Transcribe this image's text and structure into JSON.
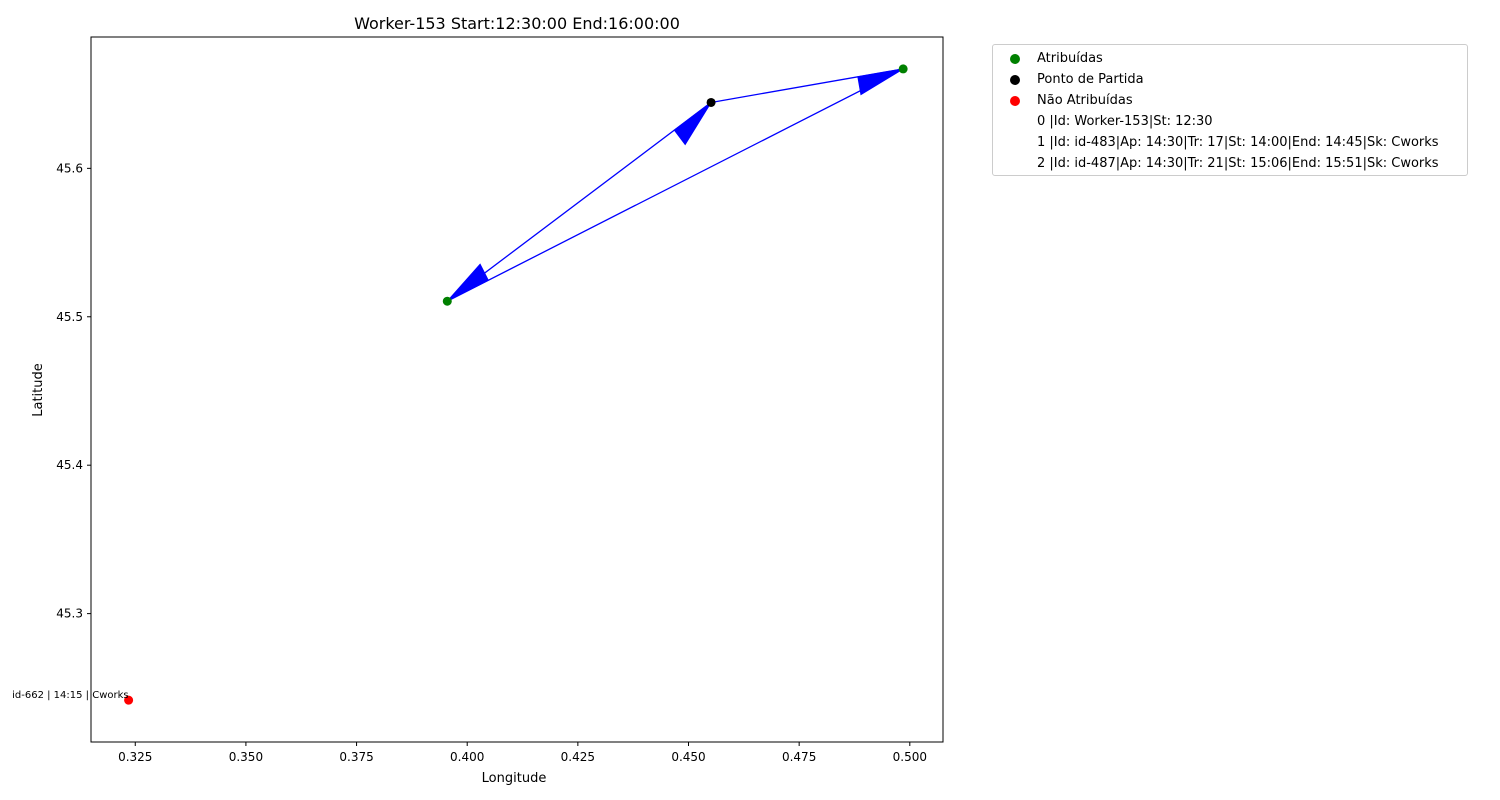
{
  "chart_data": {
    "type": "scatter",
    "title": "Worker-153 Start:12:30:00 End:16:00:00",
    "xlabel": "Longitude",
    "ylabel": "Latitude",
    "xlim": [
      0.315,
      0.5075
    ],
    "ylim": [
      45.2135,
      45.6885
    ],
    "xticks": [
      0.325,
      0.35,
      0.375,
      0.4,
      0.425,
      0.45,
      0.475,
      0.5
    ],
    "xtick_labels": [
      "0.325",
      "0.350",
      "0.375",
      "0.400",
      "0.425",
      "0.450",
      "0.475",
      "0.500"
    ],
    "yticks": [
      45.3,
      45.4,
      45.5,
      45.6
    ],
    "ytick_labels": [
      "45.3",
      "45.4",
      "45.5",
      "45.6"
    ],
    "grid": false,
    "legend_position": "outside-right-top",
    "series": [
      {
        "name": "Atribuídas",
        "color": "#008000",
        "points": [
          {
            "x": 0.3955,
            "y": 45.5105
          },
          {
            "x": 0.4985,
            "y": 45.667
          }
        ]
      },
      {
        "name": "Ponto de Partida",
        "color": "#000000",
        "points": [
          {
            "x": 0.4551,
            "y": 45.6444
          }
        ]
      },
      {
        "name": "Não Atribuídas",
        "color": "#ff0000",
        "points": [
          {
            "x": 0.3235,
            "y": 45.2417,
            "label": "id-662 | 14:15 | Cworks"
          }
        ]
      }
    ],
    "route": {
      "color": "#0000ff",
      "arrows": [
        {
          "from": {
            "x": 0.4551,
            "y": 45.6444
          },
          "to": {
            "x": 0.4985,
            "y": 45.667
          }
        },
        {
          "from": {
            "x": 0.4985,
            "y": 45.667
          },
          "to": {
            "x": 0.3955,
            "y": 45.5105
          }
        },
        {
          "from": {
            "x": 0.3955,
            "y": 45.5105
          },
          "to": {
            "x": 0.4551,
            "y": 45.6444
          }
        }
      ]
    },
    "legend_entries": [
      "Atribuídas",
      "Ponto de Partida",
      "Não Atribuídas",
      "0 |Id: Worker-153|St: 12:30",
      "1 |Id: id-483|Ap: 14:30|Tr: 17|St: 14:00|End: 14:45|Sk: Cworks",
      "2 |Id: id-487|Ap: 14:30|Tr: 21|St: 15:06|End: 15:51|Sk: Cworks"
    ],
    "legend_colors": [
      "#008000",
      "#000000",
      "#ff0000",
      "",
      "",
      ""
    ]
  }
}
